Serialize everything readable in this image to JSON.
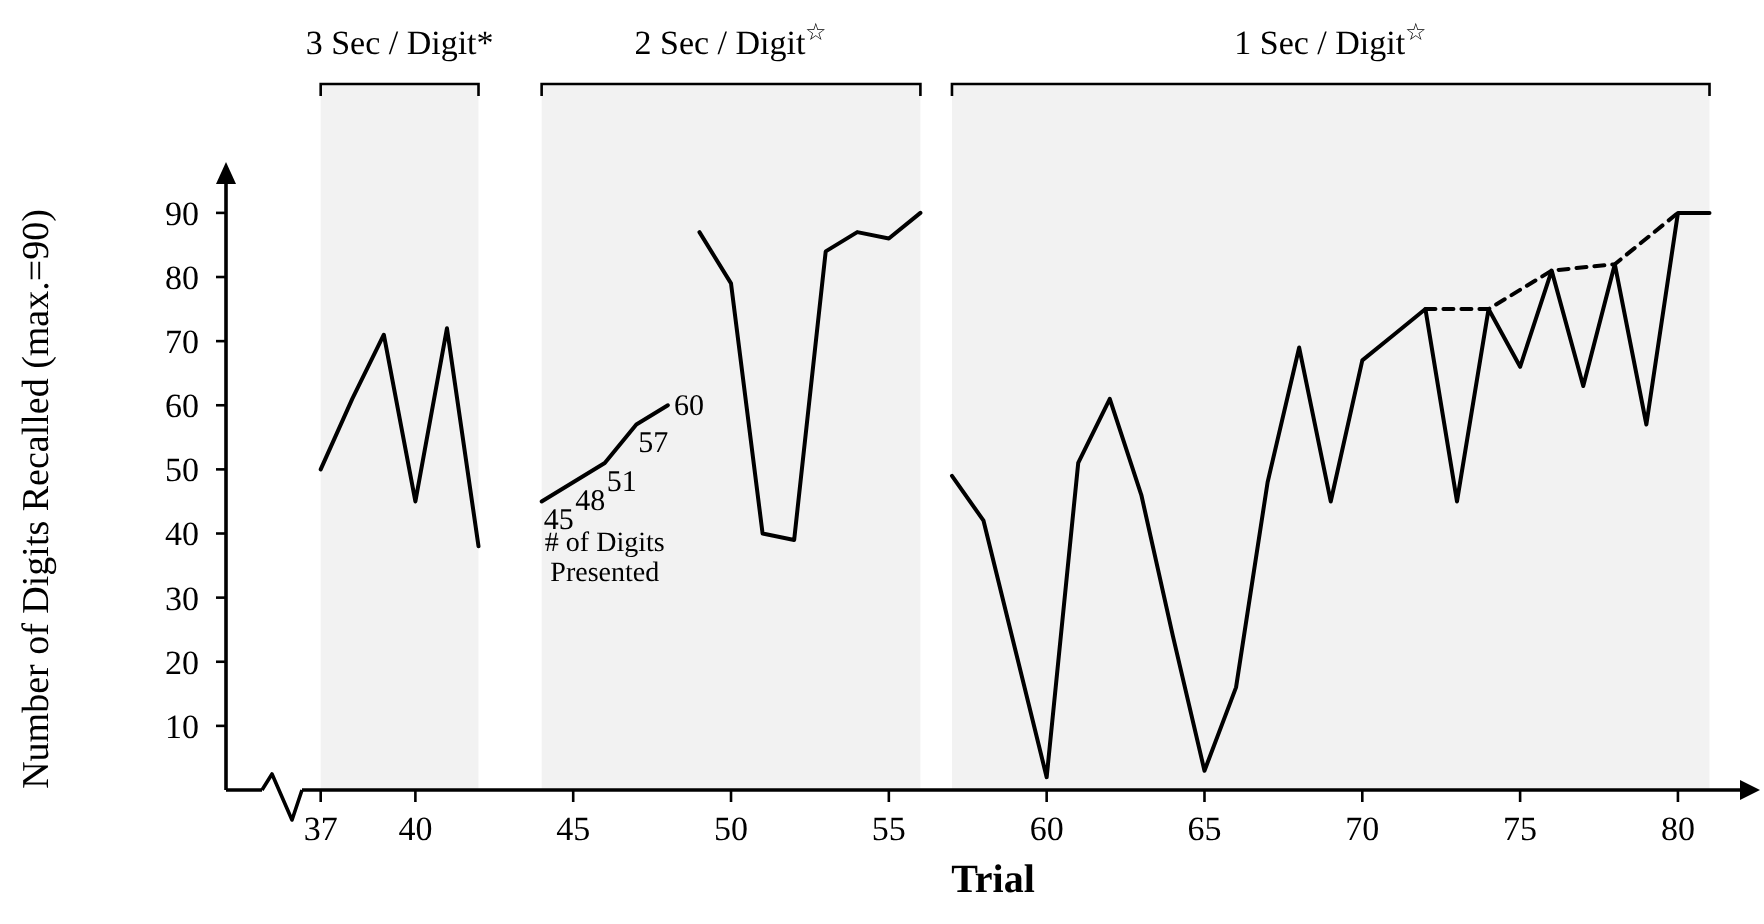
{
  "chart_data": {
    "type": "line",
    "xlabel": "Trial",
    "ylabel": "Number of Digits Recalled (max.=90)",
    "xlim": [
      34,
      82.6
    ],
    "ylim": [
      0,
      97
    ],
    "xticks": [
      37,
      40,
      45,
      50,
      55,
      60,
      65,
      70,
      75,
      80
    ],
    "yticks": [
      10,
      20,
      30,
      40,
      50,
      60,
      70,
      80,
      90
    ],
    "series": [
      {
        "color": "#000000",
        "x": [
          37,
          38,
          39,
          40,
          41,
          42
        ],
        "values": [
          50,
          61,
          71,
          45,
          72,
          38
        ]
      },
      {
        "name": "# of Digits Presented",
        "color": "#000000",
        "x": [
          44,
          45,
          46,
          47,
          48
        ],
        "values": [
          45,
          48,
          51,
          57,
          60
        ],
        "value_labels": [
          "45",
          "48",
          "51",
          "57",
          "60"
        ]
      },
      {
        "color": "#000000",
        "x": [
          49,
          50,
          51,
          52,
          53,
          54,
          55,
          56
        ],
        "values": [
          87,
          79,
          40,
          39,
          84,
          87,
          86,
          90
        ]
      },
      {
        "color": "#000000",
        "x": [
          57,
          58,
          59,
          60,
          61,
          62,
          63,
          64,
          65,
          66,
          67,
          68,
          69,
          70,
          71,
          72,
          73,
          74,
          75,
          76,
          77,
          78,
          79,
          80,
          81
        ],
        "values": [
          49,
          42,
          22,
          2,
          51,
          61,
          46,
          24,
          3,
          16,
          48,
          69,
          45,
          67,
          71,
          75,
          45,
          75,
          66,
          81,
          63,
          82,
          57,
          90,
          90
        ]
      },
      {
        "color": "#000000",
        "line_style": "dashed",
        "x": [
          72,
          74,
          76,
          78,
          80
        ],
        "values": [
          75,
          75,
          81,
          82,
          90
        ]
      }
    ],
    "bands": [
      {
        "axis": "x",
        "from": 37,
        "to": 42,
        "label": "3 Sec / Digit*"
      },
      {
        "axis": "x",
        "from": 44,
        "to": 56,
        "label": "2 Sec / Digit$^{☆}$"
      },
      {
        "axis": "x",
        "from": 57,
        "to": 81,
        "label": "1 Sec / Digit$^{☆}$"
      }
    ]
  }
}
